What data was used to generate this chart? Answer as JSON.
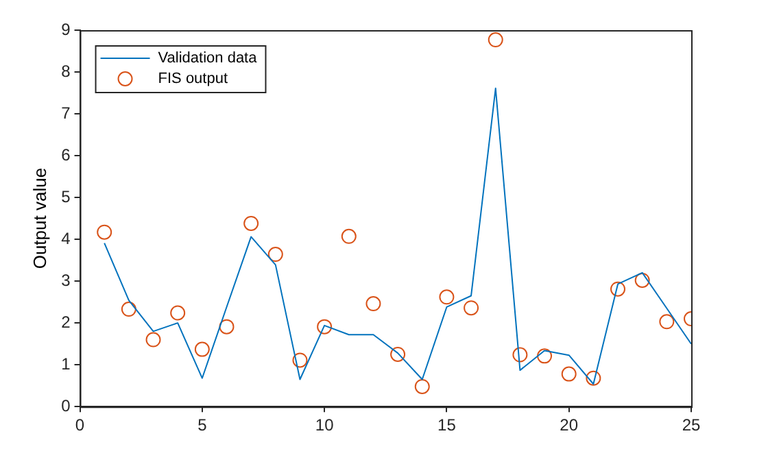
{
  "chart_data": {
    "type": "line",
    "ylabel": "Output value",
    "x": [
      1,
      2,
      3,
      4,
      5,
      6,
      7,
      8,
      9,
      10,
      11,
      12,
      13,
      14,
      15,
      16,
      17,
      18,
      19,
      20,
      21,
      22,
      23,
      24,
      25
    ],
    "xlim": [
      0,
      25
    ],
    "xticks": [
      0,
      5,
      10,
      15,
      20,
      25
    ],
    "ylim": [
      0,
      9
    ],
    "yticks": [
      0,
      1,
      2,
      3,
      4,
      5,
      6,
      7,
      8,
      9
    ],
    "grid": false,
    "legend": "top left",
    "series": [
      {
        "name": "Validation data",
        "color": "#0072bd",
        "marker": "none",
        "line_style": "solid",
        "values": [
          3.91,
          2.54,
          1.8,
          2.0,
          0.68,
          2.38,
          4.06,
          3.39,
          0.65,
          1.94,
          1.72,
          1.72,
          1.28,
          0.65,
          2.38,
          2.65,
          7.61,
          0.87,
          1.34,
          1.23,
          0.54,
          2.93,
          3.2,
          2.35,
          1.5
        ]
      },
      {
        "name": "FIS output",
        "type": "scatter",
        "color": "#d95319",
        "marker": "circle",
        "values": [
          4.17,
          2.33,
          1.6,
          2.24,
          1.37,
          1.91,
          4.38,
          3.64,
          1.11,
          1.91,
          4.07,
          2.46,
          1.25,
          0.48,
          2.62,
          2.36,
          8.77,
          1.24,
          1.21,
          0.78,
          0.68,
          2.81,
          3.02,
          2.03,
          2.1
        ]
      }
    ]
  }
}
